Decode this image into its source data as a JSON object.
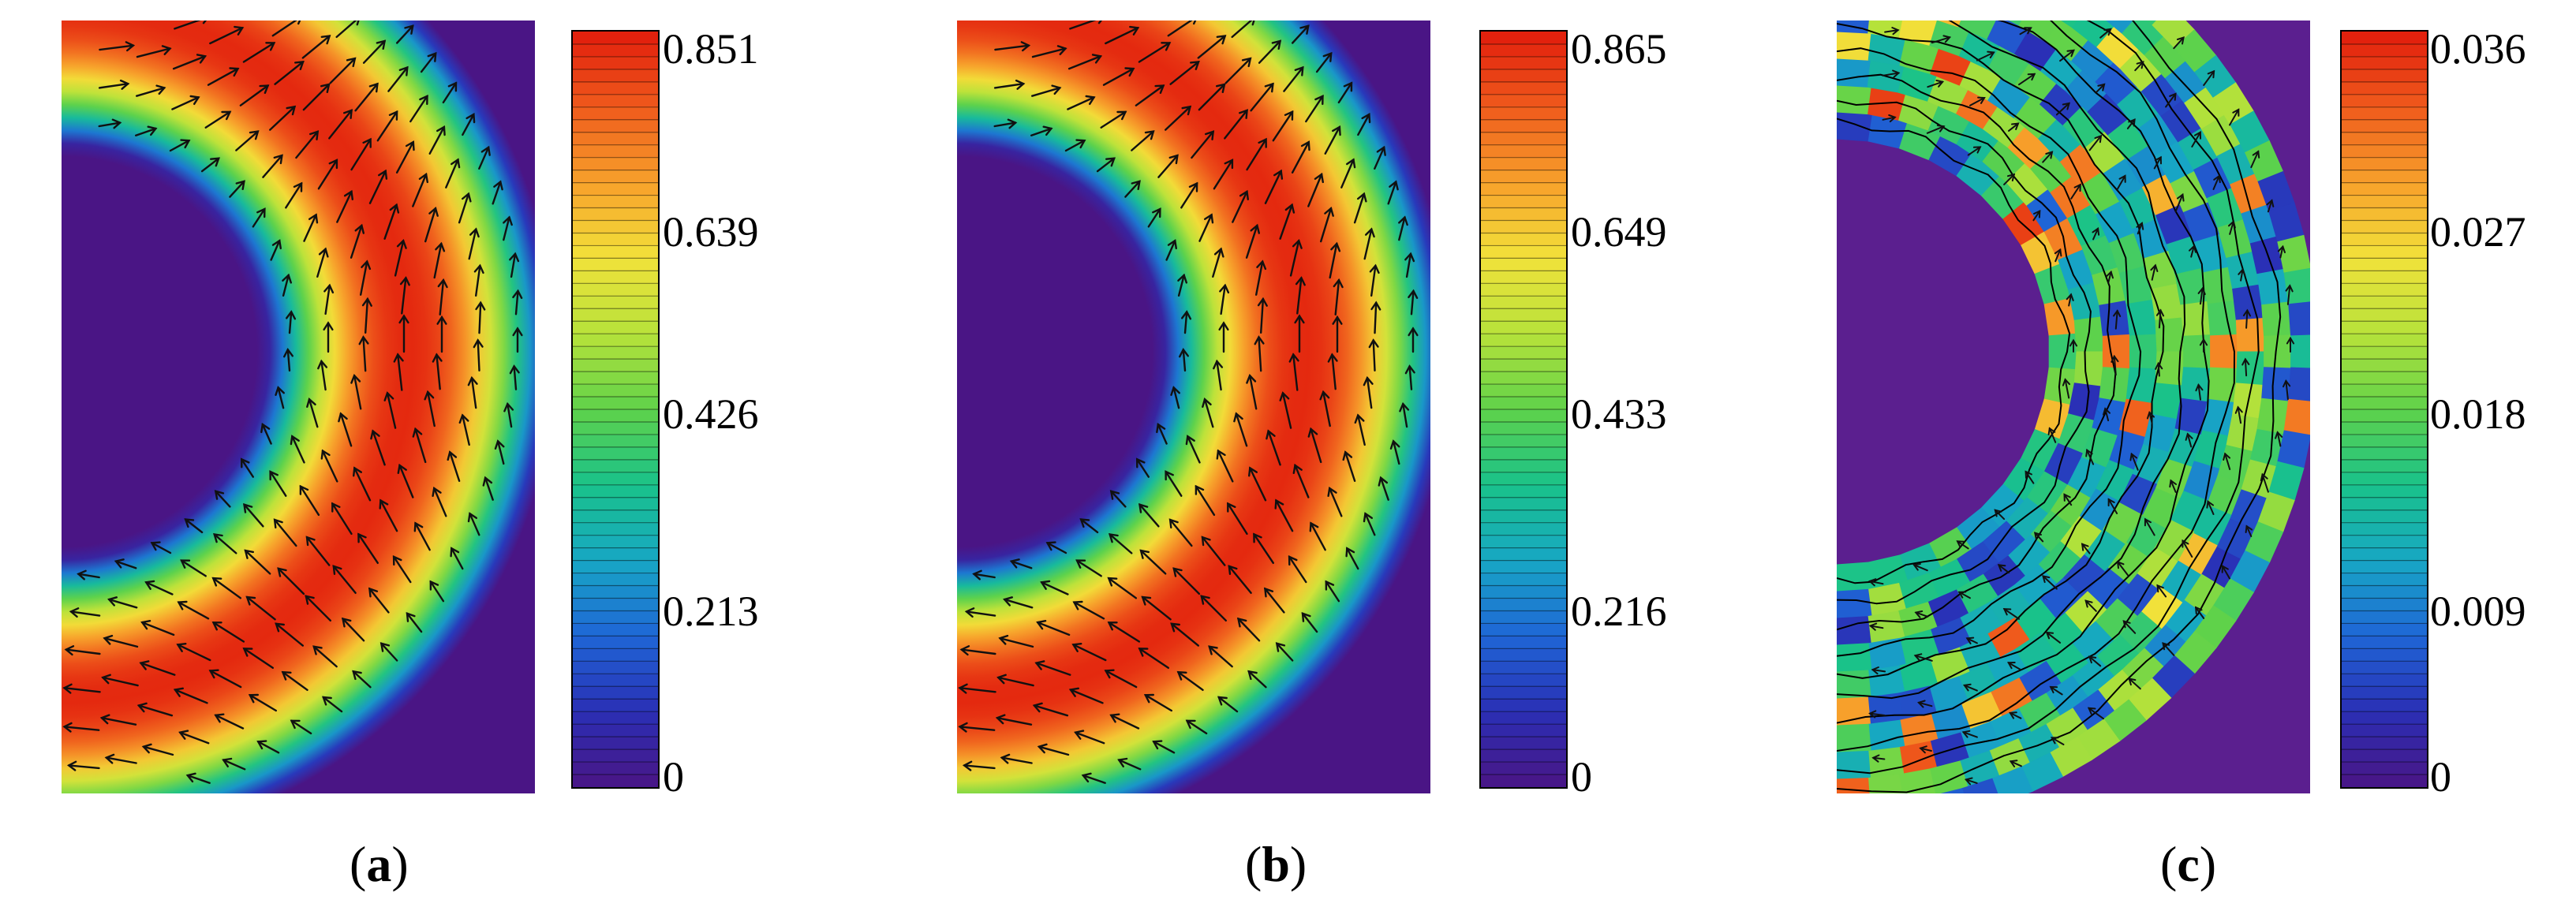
{
  "colors": {
    "background": "#5b1f8f",
    "colormap": [
      "#4a1585",
      "#2a2fb5",
      "#1f66d6",
      "#17a7c4",
      "#19c28a",
      "#5fd24a",
      "#b7e23a",
      "#f1e23a",
      "#f7a12b",
      "#ef5a1c",
      "#e11c0c"
    ],
    "arrow": "#111111",
    "streamline": "#000000"
  },
  "panels": [
    {
      "caption_letter": "a",
      "caption_open": "(",
      "caption_close": ")",
      "field": "uniform_band",
      "arrows": true,
      "streamlines": false,
      "colorbar_ticks": [
        "0.851",
        "0.639",
        "0.426",
        "0.213",
        "0"
      ]
    },
    {
      "caption_letter": "b",
      "caption_open": "(",
      "caption_close": ")",
      "field": "uniform_band",
      "arrows": true,
      "streamlines": false,
      "colorbar_ticks": [
        "0.865",
        "0.649",
        "0.433",
        "0.216",
        "0"
      ]
    },
    {
      "caption_letter": "c",
      "caption_open": "(",
      "caption_close": ")",
      "field": "difference",
      "arrows": true,
      "streamlines": true,
      "colorbar_ticks": [
        "0.036",
        "0.027",
        "0.018",
        "0.009",
        "0"
      ]
    }
  ]
}
